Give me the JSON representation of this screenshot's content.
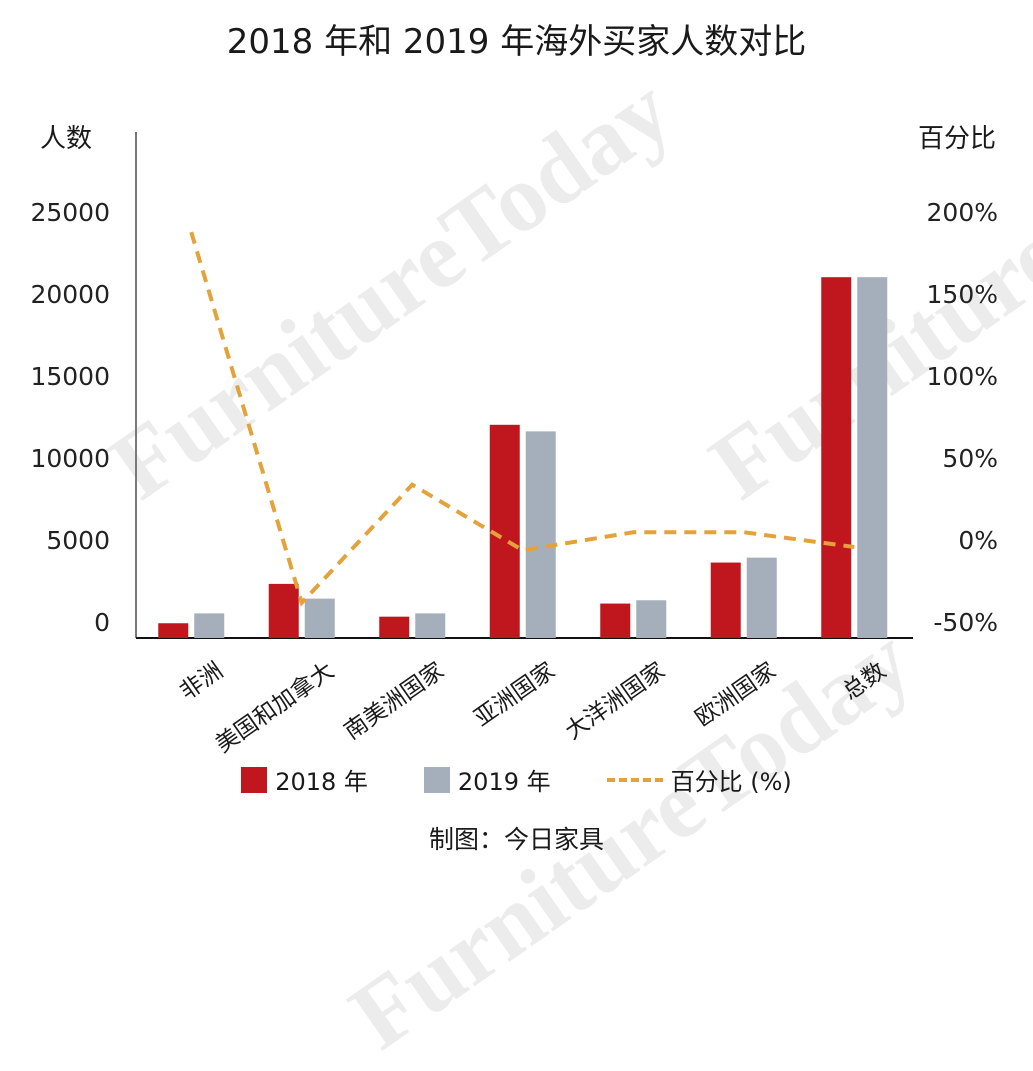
{
  "title": "2018 年和 2019 年海外买家人数对比",
  "left_axis": {
    "title": "人数",
    "ticks": [
      "25000",
      "20000",
      "15000",
      "10000",
      "5000",
      "0"
    ]
  },
  "right_axis": {
    "title": "百分比",
    "ticks": [
      "200%",
      "150%",
      "100%",
      "50%",
      "0%",
      "-50%"
    ]
  },
  "categories": [
    "非洲",
    "美国和加拿大",
    "南美洲国家",
    "亚洲国家",
    "大洋洲国家",
    "欧洲国家",
    "总数"
  ],
  "legend": {
    "item_2018": "2018 年",
    "item_2019": "2019 年",
    "item_pct": "百分比 (%)"
  },
  "source": "制图：今日家具",
  "watermark": "FurnitureToday",
  "colors": {
    "bar_2018": "#C0171F",
    "bar_2019": "#A5AEBB",
    "line_pct": "#E3A23A"
  },
  "chart_data": {
    "type": "bar",
    "title": "2018 年和 2019 年海外买家人数对比",
    "xlabel": "",
    "ylabel": "人数",
    "y2label": "百分比",
    "categories": [
      "非洲",
      "美国和加拿大",
      "南美洲国家",
      "亚洲国家",
      "大洋洲国家",
      "欧洲国家",
      "总数"
    ],
    "series": [
      {
        "name": "2018 年",
        "type": "bar",
        "axis": "left",
        "values": [
          900,
          3300,
          1300,
          13000,
          2100,
          4600,
          22000
        ]
      },
      {
        "name": "2019 年",
        "type": "bar",
        "axis": "left",
        "values": [
          1500,
          2400,
          1500,
          12600,
          2300,
          4900,
          22000
        ]
      },
      {
        "name": "百分比 (%)",
        "type": "line",
        "style": "dashed",
        "axis": "right",
        "values": [
          192,
          -34,
          38,
          -2,
          9,
          9,
          0
        ]
      }
    ],
    "ylim": [
      0,
      25000
    ],
    "y2lim": [
      -50,
      200
    ],
    "yticks": [
      0,
      5000,
      10000,
      15000,
      20000,
      25000
    ],
    "y2ticks": [
      -50,
      0,
      50,
      100,
      150,
      200
    ],
    "grid": false,
    "legend_position": "bottom"
  }
}
